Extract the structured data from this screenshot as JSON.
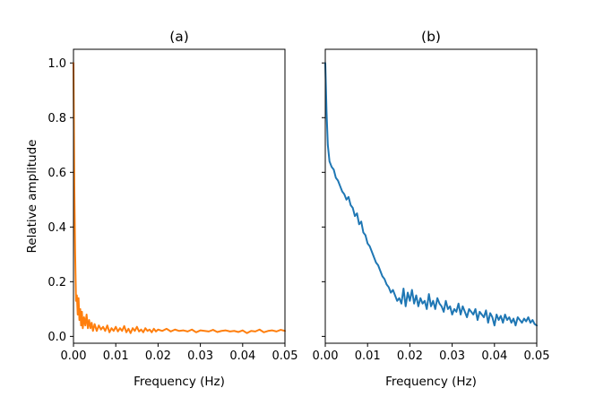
{
  "chart_data": [
    {
      "type": "line",
      "title": "(a)",
      "xlabel": "Frequency (Hz)",
      "ylabel": "Relative amplitude",
      "xlim": [
        0,
        0.05
      ],
      "ylim": [
        -0.025,
        1.05
      ],
      "xticks": [
        0,
        0.01,
        0.02,
        0.03,
        0.04,
        0.05
      ],
      "xtick_labels": [
        "0.00",
        "0.01",
        "0.02",
        "0.03",
        "0.04",
        "0.05"
      ],
      "yticks": [
        0,
        0.2,
        0.4,
        0.6,
        0.8,
        1.0
      ],
      "ytick_labels": [
        "0.0",
        "0.2",
        "0.4",
        "0.6",
        "0.8",
        "1.0"
      ],
      "grid": false,
      "series": [
        {
          "color": "#ff7f0e",
          "x": [
            0,
            0.0002,
            0.0004,
            0.0006,
            0.0008,
            0.001,
            0.0012,
            0.0014,
            0.0016,
            0.0018,
            0.002,
            0.0022,
            0.0025,
            0.0028,
            0.0031,
            0.0034,
            0.0037,
            0.004,
            0.0043,
            0.0046,
            0.005,
            0.0055,
            0.006,
            0.0065,
            0.007,
            0.0075,
            0.008,
            0.0085,
            0.009,
            0.0095,
            0.01,
            0.0105,
            0.011,
            0.0115,
            0.012,
            0.0125,
            0.013,
            0.0135,
            0.014,
            0.0145,
            0.015,
            0.0155,
            0.016,
            0.0165,
            0.017,
            0.0175,
            0.018,
            0.0185,
            0.019,
            0.0195,
            0.02,
            0.021,
            0.022,
            0.023,
            0.024,
            0.025,
            0.026,
            0.027,
            0.028,
            0.029,
            0.03,
            0.031,
            0.032,
            0.033,
            0.034,
            0.035,
            0.036,
            0.037,
            0.038,
            0.039,
            0.04,
            0.041,
            0.042,
            0.043,
            0.044,
            0.045,
            0.046,
            0.047,
            0.048,
            0.049,
            0.05
          ],
          "y": [
            1.0,
            0.55,
            0.3,
            0.13,
            0.15,
            0.08,
            0.14,
            0.06,
            0.1,
            0.04,
            0.09,
            0.03,
            0.07,
            0.04,
            0.08,
            0.03,
            0.06,
            0.03,
            0.05,
            0.02,
            0.045,
            0.02,
            0.04,
            0.025,
            0.035,
            0.02,
            0.04,
            0.015,
            0.03,
            0.02,
            0.035,
            0.018,
            0.03,
            0.02,
            0.038,
            0.015,
            0.028,
            0.012,
            0.03,
            0.02,
            0.035,
            0.018,
            0.025,
            0.015,
            0.03,
            0.02,
            0.025,
            0.015,
            0.028,
            0.018,
            0.025,
            0.02,
            0.028,
            0.018,
            0.025,
            0.02,
            0.022,
            0.018,
            0.025,
            0.015,
            0.022,
            0.02,
            0.018,
            0.024,
            0.016,
            0.02,
            0.022,
            0.018,
            0.02,
            0.016,
            0.022,
            0.012,
            0.02,
            0.018,
            0.025,
            0.015,
            0.02,
            0.022,
            0.018,
            0.024,
            0.02
          ]
        }
      ]
    },
    {
      "type": "line",
      "title": "(b)",
      "xlabel": "Frequency (Hz)",
      "xlim": [
        0,
        0.05
      ],
      "ylim": [
        -0.025,
        1.05
      ],
      "xticks": [
        0,
        0.01,
        0.02,
        0.03,
        0.04,
        0.05
      ],
      "xtick_labels": [
        "0.00",
        "0.01",
        "0.02",
        "0.03",
        "0.04",
        "0.05"
      ],
      "yticks": [
        0,
        0.2,
        0.4,
        0.6,
        0.8,
        1.0
      ],
      "grid": false,
      "series": [
        {
          "color": "#1f77b4",
          "x": [
            0,
            0.0003,
            0.0006,
            0.001,
            0.0015,
            0.002,
            0.0025,
            0.003,
            0.0035,
            0.004,
            0.0045,
            0.005,
            0.0055,
            0.006,
            0.0065,
            0.007,
            0.0075,
            0.008,
            0.0085,
            0.009,
            0.0095,
            0.01,
            0.0105,
            0.011,
            0.0115,
            0.012,
            0.0125,
            0.013,
            0.0135,
            0.014,
            0.0145,
            0.015,
            0.0155,
            0.016,
            0.0165,
            0.017,
            0.0175,
            0.018,
            0.0185,
            0.019,
            0.0195,
            0.02,
            0.0205,
            0.021,
            0.0215,
            0.022,
            0.0225,
            0.023,
            0.0235,
            0.024,
            0.0245,
            0.025,
            0.0255,
            0.026,
            0.0265,
            0.027,
            0.0275,
            0.028,
            0.0285,
            0.029,
            0.0295,
            0.03,
            0.0305,
            0.031,
            0.0315,
            0.032,
            0.0325,
            0.033,
            0.0335,
            0.034,
            0.0345,
            0.035,
            0.0355,
            0.036,
            0.0365,
            0.037,
            0.0375,
            0.038,
            0.0385,
            0.039,
            0.0395,
            0.04,
            0.0405,
            0.041,
            0.0415,
            0.042,
            0.0425,
            0.043,
            0.0435,
            0.044,
            0.0445,
            0.045,
            0.0455,
            0.046,
            0.0465,
            0.047,
            0.0475,
            0.048,
            0.0485,
            0.049,
            0.0495,
            0.05
          ],
          "y": [
            1.0,
            0.82,
            0.7,
            0.64,
            0.62,
            0.61,
            0.58,
            0.57,
            0.55,
            0.53,
            0.52,
            0.5,
            0.51,
            0.48,
            0.47,
            0.44,
            0.45,
            0.41,
            0.42,
            0.38,
            0.37,
            0.34,
            0.33,
            0.31,
            0.29,
            0.27,
            0.26,
            0.24,
            0.22,
            0.21,
            0.19,
            0.18,
            0.16,
            0.17,
            0.15,
            0.13,
            0.14,
            0.12,
            0.175,
            0.11,
            0.16,
            0.13,
            0.17,
            0.12,
            0.15,
            0.11,
            0.14,
            0.12,
            0.13,
            0.1,
            0.155,
            0.11,
            0.13,
            0.1,
            0.14,
            0.12,
            0.11,
            0.09,
            0.13,
            0.1,
            0.11,
            0.08,
            0.1,
            0.09,
            0.12,
            0.08,
            0.11,
            0.09,
            0.07,
            0.1,
            0.09,
            0.08,
            0.1,
            0.06,
            0.09,
            0.08,
            0.07,
            0.095,
            0.05,
            0.085,
            0.07,
            0.04,
            0.08,
            0.06,
            0.075,
            0.05,
            0.08,
            0.06,
            0.07,
            0.05,
            0.065,
            0.04,
            0.07,
            0.06,
            0.05,
            0.065,
            0.055,
            0.07,
            0.05,
            0.06,
            0.045,
            0.04
          ]
        }
      ]
    }
  ]
}
